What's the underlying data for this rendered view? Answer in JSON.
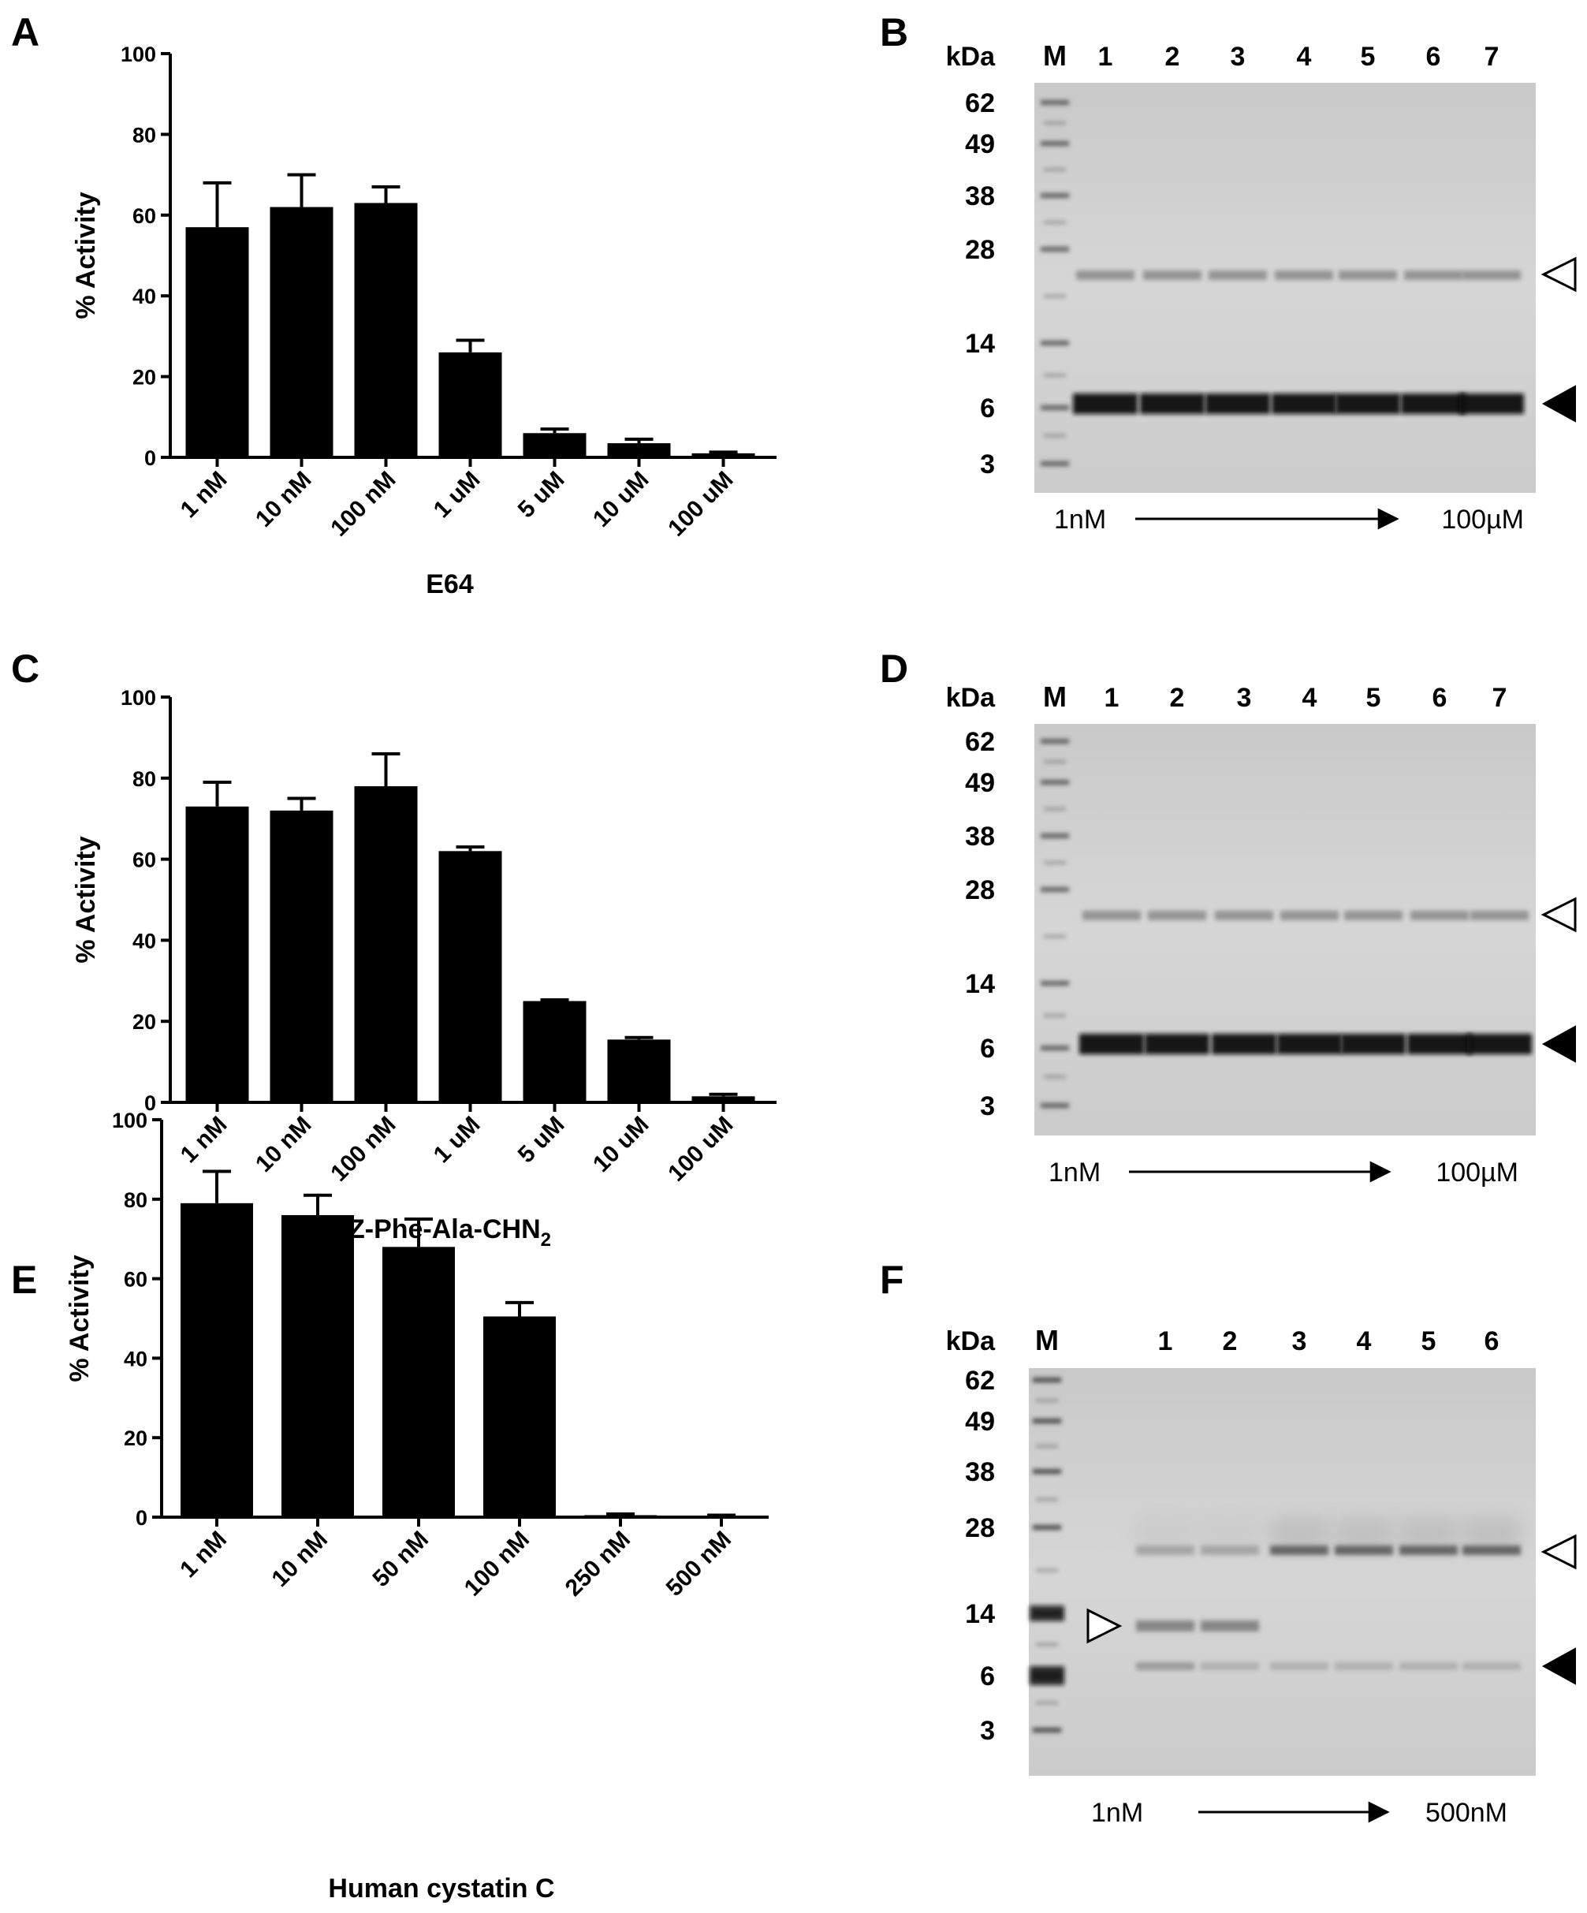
{
  "panel_letters": [
    "A",
    "B",
    "C",
    "D",
    "E",
    "F"
  ],
  "colors": {
    "bar": "#000000",
    "gel_background": "#cfcfcf",
    "ink": "#000000"
  },
  "chart_data": [
    {
      "panel": "A",
      "type": "bar",
      "categories": [
        "1 nM",
        "10 nM",
        "100 nM",
        "1 uM",
        "5 uM",
        "10 uM",
        "100 uM"
      ],
      "values": [
        57,
        62,
        63,
        26,
        6,
        3.5,
        1
      ],
      "error_upper": [
        68,
        70,
        67,
        29,
        7,
        4.5,
        1.3
      ],
      "ylabel": "% Activity",
      "xlabel": "E64",
      "xlabel_sub": "",
      "ylim": [
        0,
        100
      ],
      "yticks": [
        "0",
        "20",
        "40",
        "60",
        "80",
        "100"
      ]
    },
    {
      "panel": "C",
      "type": "bar",
      "categories": [
        "1 nM",
        "10 nM",
        "100 nM",
        "1 uM",
        "5 uM",
        "10 uM",
        "100 uM"
      ],
      "values": [
        73,
        72,
        78,
        62,
        25,
        15.5,
        1.5
      ],
      "error_upper": [
        79,
        75,
        86,
        63,
        25.3,
        16,
        2
      ],
      "ylabel": "% Activity",
      "xlabel": "Z-Phe-Ala-CHN",
      "xlabel_sub": "2",
      "ylim": [
        0,
        100
      ],
      "yticks": [
        "0",
        "20",
        "40",
        "60",
        "80",
        "100"
      ]
    },
    {
      "panel": "E",
      "type": "bar",
      "categories": [
        "1 nM",
        "10 nM",
        "50 nM",
        "100 nM",
        "250 nM",
        "500 nM"
      ],
      "values": [
        79,
        76,
        68,
        50.5,
        0.5,
        0.3
      ],
      "error_upper": [
        87,
        81,
        75,
        54,
        0.8,
        0.5
      ],
      "ylabel": "% Activity",
      "xlabel": "Human cystatin C",
      "xlabel_sub": "",
      "ylim": [
        0,
        100
      ],
      "yticks": [
        "0",
        "20",
        "40",
        "60",
        "80",
        "100"
      ]
    }
  ],
  "gels": [
    {
      "panel": "B",
      "kda_label": "kDa",
      "marker_label": "M",
      "lanes": [
        "1",
        "2",
        "3",
        "4",
        "5",
        "6",
        "7"
      ],
      "markers": [
        "62",
        "49",
        "38",
        "28",
        "14",
        "6",
        "3"
      ],
      "range_start": "1nM",
      "range_end": "100µM"
    },
    {
      "panel": "D",
      "kda_label": "kDa",
      "marker_label": "M",
      "lanes": [
        "1",
        "2",
        "3",
        "4",
        "5",
        "6",
        "7"
      ],
      "markers": [
        "62",
        "49",
        "38",
        "28",
        "14",
        "6",
        "3"
      ],
      "range_start": "1nM",
      "range_end": "100µM"
    },
    {
      "panel": "F",
      "kda_label": "kDa",
      "marker_label": "M",
      "lanes": [
        "1",
        "2",
        "3",
        "4",
        "5",
        "6"
      ],
      "markers": [
        "62",
        "49",
        "38",
        "28",
        "14",
        "6",
        "3"
      ],
      "range_start": "1nM",
      "range_end": "500nM"
    }
  ]
}
